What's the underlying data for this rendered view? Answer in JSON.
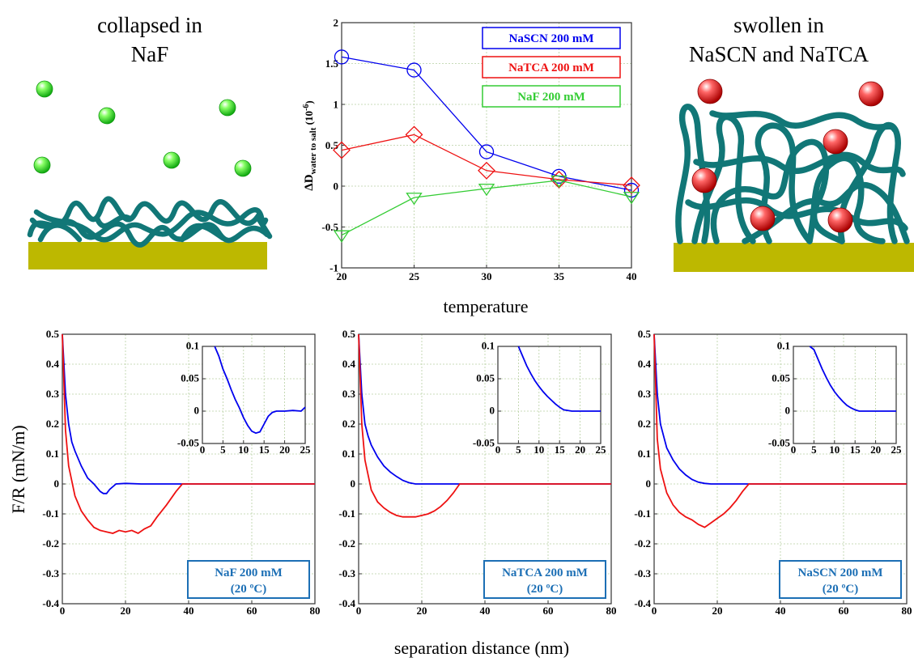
{
  "left_panel": {
    "title_line1": "collapsed in",
    "title_line2": "NaF",
    "ion_color": "#22dd22",
    "polymer_color": "#117777",
    "substrate_color": "#bdb800"
  },
  "right_panel": {
    "title_line1": "swollen in",
    "title_line2": "NaSCN and NaTCA",
    "ion_color": "#dd1111",
    "polymer_color": "#117777",
    "substrate_color": "#bdb800"
  },
  "x_axis_label_top": "temperature",
  "y_axis_label_bottom": "F/R (mN/m)",
  "x_axis_label_bottom": "separation distance (nm)",
  "colors": {
    "blue": "#0000ee",
    "red": "#ee1111",
    "green": "#33cc33",
    "box_text": "#1c6fb5"
  },
  "chart_data": [
    {
      "type": "line",
      "id": "top",
      "ylabel_main": "ΔD",
      "ylabel_sub": "water to salt",
      "ylabel_exp": "(10",
      "ylabel_exp_power": "-6",
      "ylabel_exp_close": ")",
      "xlim": [
        20,
        40
      ],
      "ylim": [
        -1,
        2
      ],
      "x_ticks": [
        20,
        25,
        30,
        35,
        40
      ],
      "y_ticks": [
        -1,
        -0.5,
        0,
        0.5,
        1,
        1.5,
        2
      ],
      "legend_position": "top-right",
      "series": [
        {
          "name": "NaSCN 200 mM",
          "color": "#0000ee",
          "marker": "circle",
          "x": [
            20,
            25,
            30,
            35,
            40
          ],
          "y": [
            1.58,
            1.42,
            0.42,
            0.12,
            -0.05
          ]
        },
        {
          "name": "NaTCA 200 mM",
          "color": "#ee1111",
          "marker": "diamond",
          "x": [
            20,
            25,
            30,
            35,
            40
          ],
          "y": [
            0.44,
            0.63,
            0.19,
            0.08,
            0.01
          ]
        },
        {
          "name": "NaF 200 mM",
          "color": "#33cc33",
          "marker": "triangle-down",
          "x": [
            20,
            25,
            30,
            35,
            40
          ],
          "y": [
            -0.6,
            -0.14,
            -0.03,
            0.07,
            -0.13
          ]
        }
      ]
    },
    {
      "type": "line",
      "id": "p1",
      "box_line1": "NaF 200 mM",
      "box_line2": "(20 ºC)",
      "xlim": [
        0,
        80
      ],
      "ylim": [
        -0.4,
        0.5
      ],
      "x_ticks": [
        0,
        20,
        40,
        60,
        80
      ],
      "y_ticks": [
        -0.4,
        -0.3,
        -0.2,
        -0.1,
        0,
        0.1,
        0.2,
        0.3,
        0.4,
        0.5
      ],
      "series": [
        {
          "color": "#0000ee",
          "x": [
            0,
            1,
            2,
            3,
            4,
            6,
            8,
            10,
            12,
            13,
            14,
            15,
            17,
            20,
            25,
            40,
            80
          ],
          "y": [
            0.5,
            0.3,
            0.2,
            0.14,
            0.11,
            0.06,
            0.02,
            0.0,
            -0.025,
            -0.032,
            -0.032,
            -0.018,
            0.0,
            0.002,
            0.0,
            0.0,
            0.0
          ]
        },
        {
          "color": "#ee1111",
          "x": [
            0,
            1,
            2,
            4,
            6,
            8,
            10,
            12,
            14,
            16,
            18,
            20,
            22,
            24,
            26,
            28,
            30,
            33,
            36,
            38,
            40,
            80
          ],
          "y": [
            0.5,
            0.18,
            0.06,
            -0.04,
            -0.09,
            -0.12,
            -0.145,
            -0.155,
            -0.16,
            -0.165,
            -0.155,
            -0.16,
            -0.155,
            -0.165,
            -0.15,
            -0.14,
            -0.11,
            -0.07,
            -0.025,
            0.0,
            0.0,
            0.0
          ]
        }
      ],
      "inset": {
        "xlim": [
          0,
          25
        ],
        "ylim": [
          -0.05,
          0.1
        ],
        "x_ticks": [
          0,
          5,
          10,
          15,
          20,
          25
        ],
        "y_ticks": [
          -0.05,
          0,
          0.05,
          0.1
        ],
        "x": [
          3,
          4,
          5,
          6,
          7,
          8,
          9,
          10,
          11,
          12,
          13,
          14,
          15,
          16,
          17,
          18,
          20,
          22,
          24,
          25
        ],
        "y": [
          0.1,
          0.085,
          0.065,
          0.05,
          0.033,
          0.018,
          0.005,
          -0.01,
          -0.022,
          -0.031,
          -0.034,
          -0.032,
          -0.02,
          -0.008,
          -0.002,
          0.0,
          0.0,
          0.001,
          0.0,
          0.006
        ]
      }
    },
    {
      "type": "line",
      "id": "p2",
      "box_line1": "NaTCA 200 mM",
      "box_line2": "(20 ºC)",
      "xlim": [
        0,
        80
      ],
      "ylim": [
        -0.4,
        0.5
      ],
      "x_ticks": [
        0,
        20,
        40,
        60,
        80
      ],
      "y_ticks": [
        -0.4,
        -0.3,
        -0.2,
        -0.1,
        0,
        0.1,
        0.2,
        0.3,
        0.4,
        0.5
      ],
      "series": [
        {
          "color": "#0000ee",
          "x": [
            0,
            1,
            2,
            3,
            4,
            6,
            8,
            10,
            12,
            14,
            16,
            18,
            20,
            25,
            80
          ],
          "y": [
            0.5,
            0.3,
            0.2,
            0.16,
            0.13,
            0.09,
            0.06,
            0.04,
            0.025,
            0.012,
            0.004,
            0.0,
            0.0,
            0.0,
            0.0
          ]
        },
        {
          "color": "#ee1111",
          "x": [
            0,
            1,
            2,
            4,
            6,
            8,
            10,
            12,
            14,
            16,
            18,
            20,
            22,
            24,
            26,
            28,
            30,
            32,
            80
          ],
          "y": [
            0.5,
            0.2,
            0.08,
            -0.02,
            -0.06,
            -0.08,
            -0.095,
            -0.105,
            -0.11,
            -0.11,
            -0.11,
            -0.105,
            -0.1,
            -0.09,
            -0.075,
            -0.055,
            -0.03,
            0.0,
            0.0
          ]
        }
      ],
      "inset": {
        "xlim": [
          0,
          25
        ],
        "ylim": [
          -0.05,
          0.1
        ],
        "x_ticks": [
          0,
          5,
          10,
          15,
          20,
          25
        ],
        "y_ticks": [
          -0.05,
          0,
          0.05,
          0.1
        ],
        "x": [
          5,
          6,
          7,
          8,
          9,
          10,
          11,
          12,
          13,
          14,
          15,
          16,
          18,
          20,
          22,
          25
        ],
        "y": [
          0.1,
          0.085,
          0.07,
          0.058,
          0.047,
          0.038,
          0.03,
          0.023,
          0.017,
          0.011,
          0.006,
          0.002,
          0.0,
          0.0,
          0.0,
          0.0
        ]
      }
    },
    {
      "type": "line",
      "id": "p3",
      "box_line1": "NaSCN 200 mM",
      "box_line2": "(20 ºC)",
      "xlim": [
        0,
        80
      ],
      "ylim": [
        -0.4,
        0.5
      ],
      "x_ticks": [
        0,
        20,
        40,
        60,
        80
      ],
      "y_ticks": [
        -0.4,
        -0.3,
        -0.2,
        -0.1,
        0,
        0.1,
        0.2,
        0.3,
        0.4,
        0.5
      ],
      "series": [
        {
          "color": "#0000ee",
          "x": [
            0,
            1,
            2,
            3,
            4,
            6,
            8,
            10,
            12,
            14,
            16,
            18,
            20,
            25,
            80
          ],
          "y": [
            0.5,
            0.3,
            0.2,
            0.16,
            0.12,
            0.08,
            0.05,
            0.03,
            0.015,
            0.006,
            0.002,
            0.0,
            0.0,
            0.0,
            0.0
          ]
        },
        {
          "color": "#ee1111",
          "x": [
            0,
            1,
            2,
            4,
            6,
            8,
            10,
            12,
            14,
            16,
            18,
            20,
            22,
            24,
            26,
            28,
            30,
            80
          ],
          "y": [
            0.5,
            0.15,
            0.05,
            -0.03,
            -0.07,
            -0.095,
            -0.11,
            -0.12,
            -0.135,
            -0.145,
            -0.13,
            -0.115,
            -0.1,
            -0.08,
            -0.055,
            -0.025,
            0.0,
            0.0
          ]
        }
      ],
      "inset": {
        "xlim": [
          0,
          25
        ],
        "ylim": [
          -0.05,
          0.1
        ],
        "x_ticks": [
          0,
          5,
          10,
          15,
          20,
          25
        ],
        "y_ticks": [
          -0.05,
          0,
          0.05,
          0.1
        ],
        "x": [
          4,
          5,
          6,
          7,
          8,
          9,
          10,
          11,
          12,
          13,
          14,
          15,
          16,
          17,
          18,
          20,
          22,
          25
        ],
        "y": [
          0.1,
          0.095,
          0.08,
          0.065,
          0.052,
          0.04,
          0.03,
          0.022,
          0.015,
          0.009,
          0.005,
          0.002,
          0.0,
          0.0,
          0.0,
          0.0,
          0.0,
          0.0
        ]
      }
    }
  ]
}
